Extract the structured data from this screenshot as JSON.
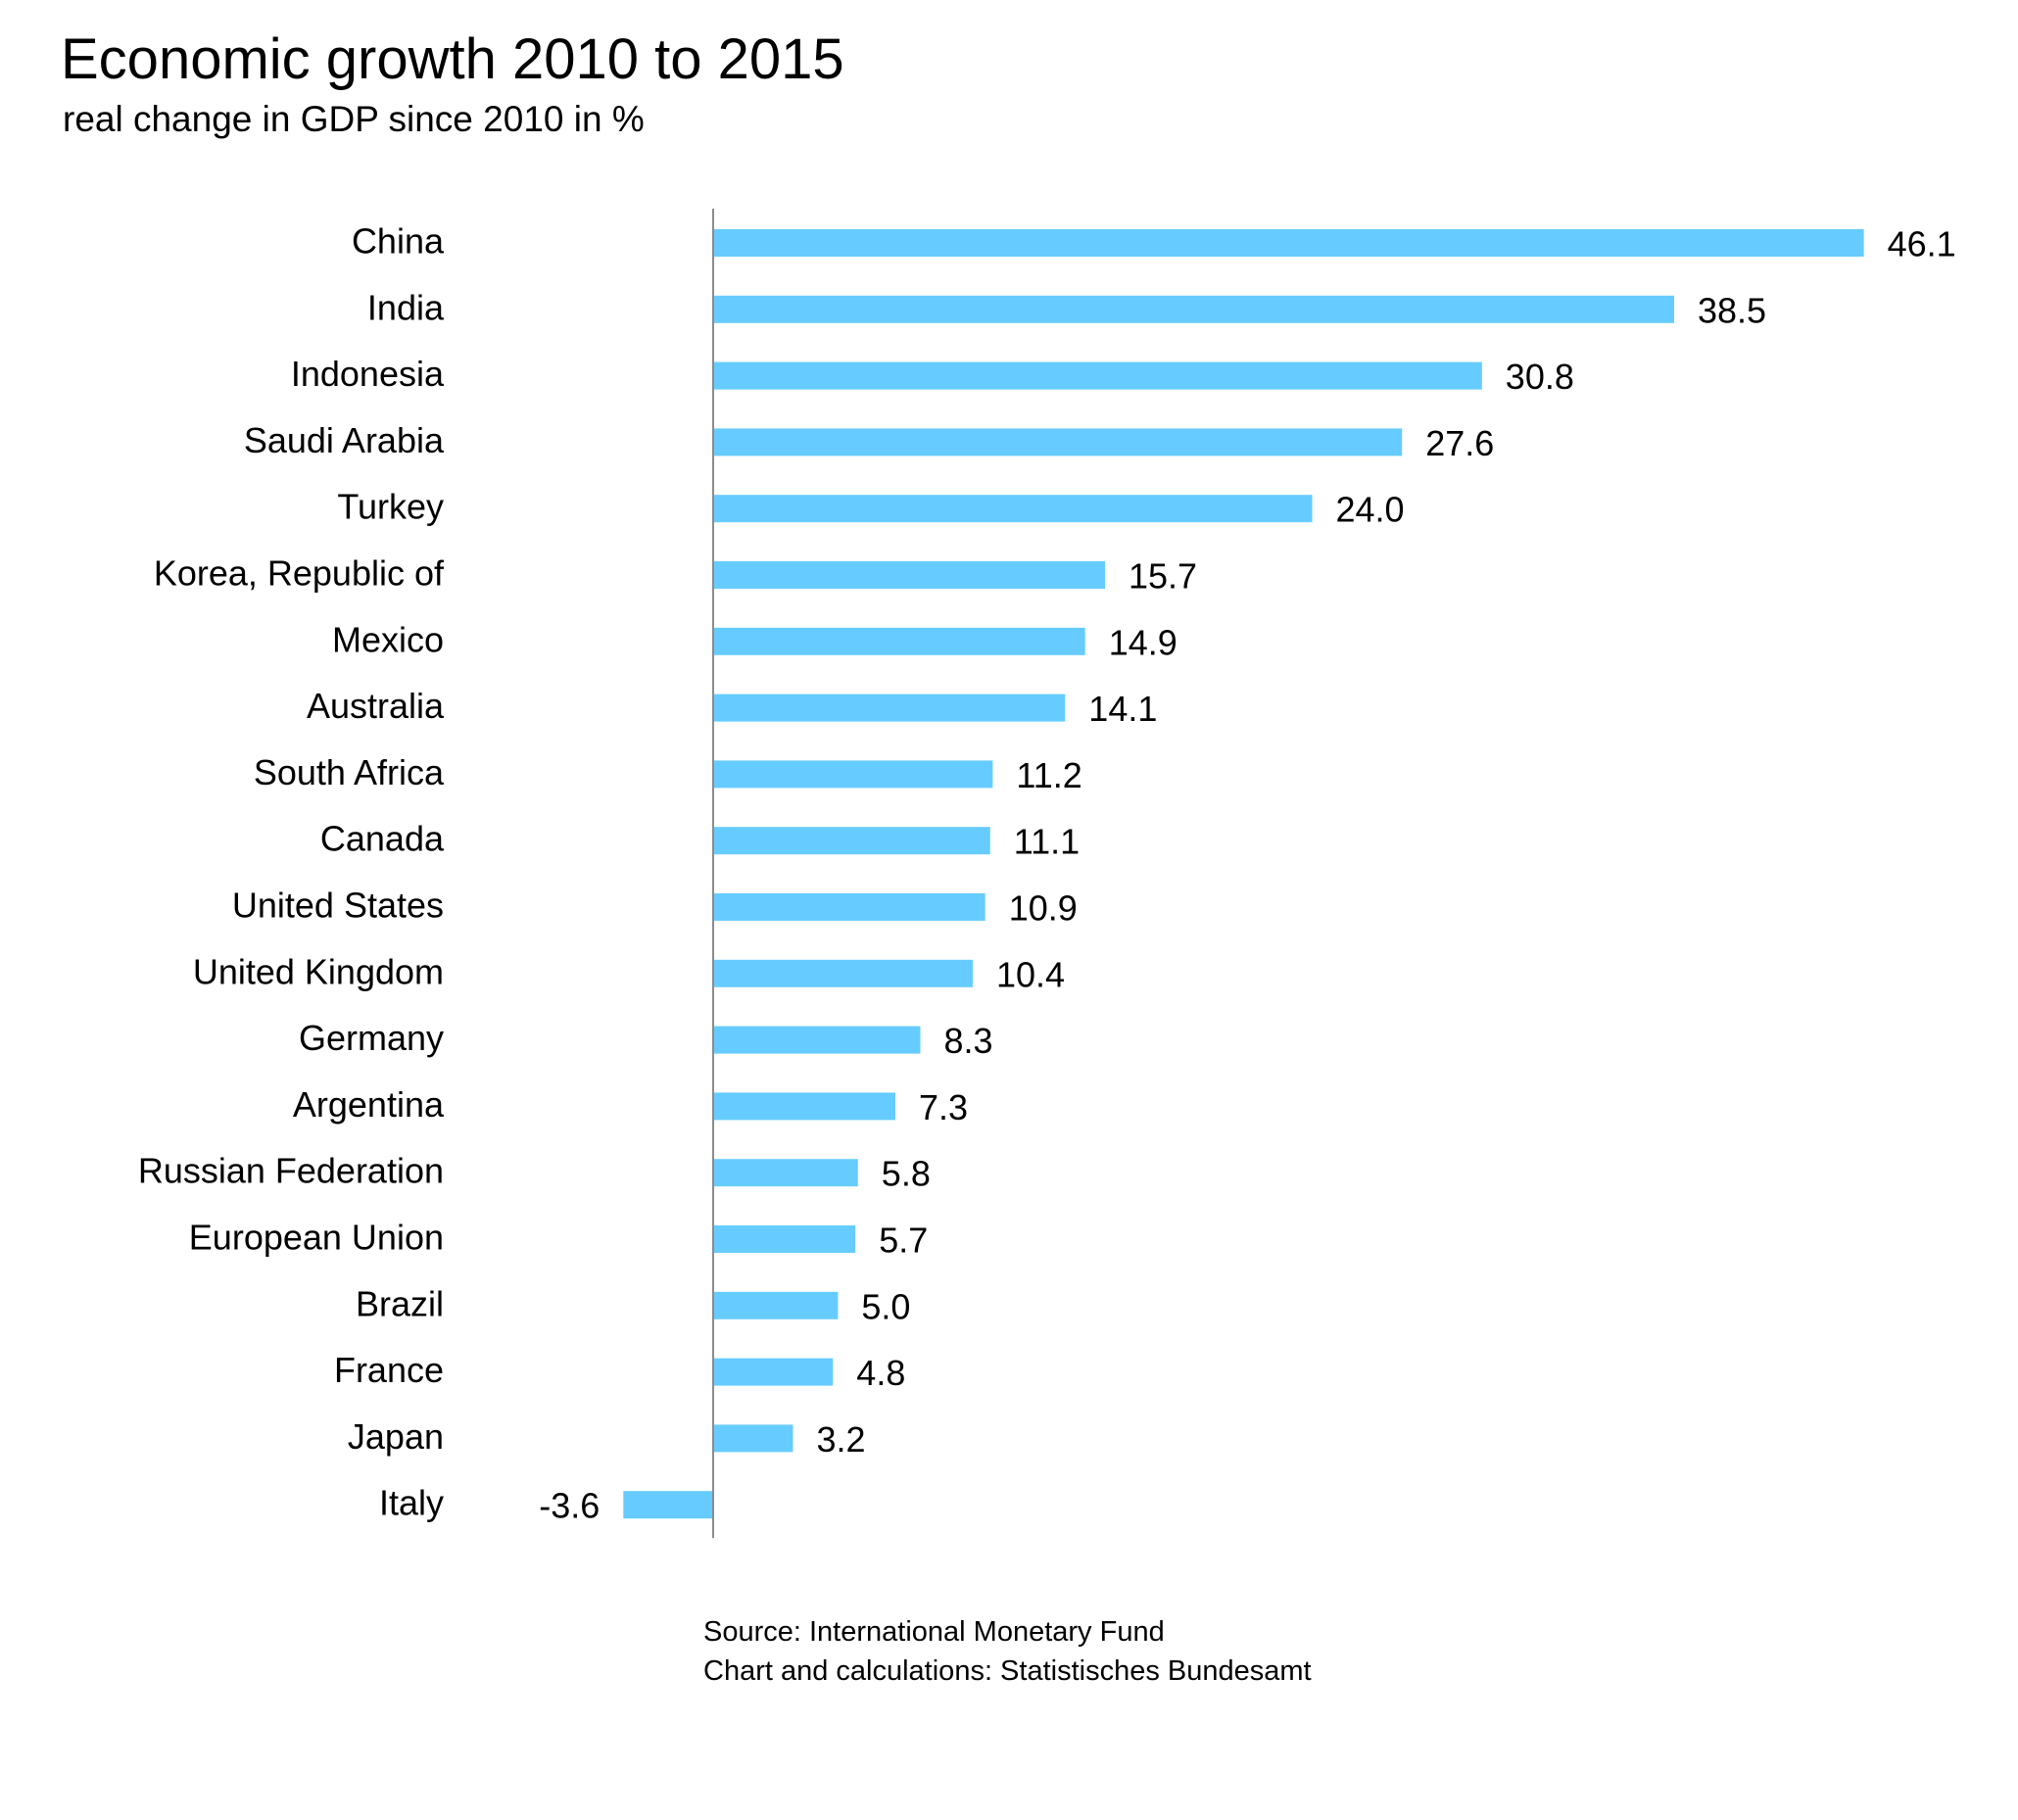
{
  "chart_data": {
    "type": "bar",
    "orientation": "horizontal",
    "title": "Economic growth 2010 to 2015",
    "subtitle": "real change in GDP since 2010 in %",
    "xlabel": "",
    "ylabel": "",
    "categories": [
      "China",
      "India",
      "Indonesia",
      "Saudi Arabia",
      "Turkey",
      "Korea, Republic of",
      "Mexico",
      "Australia",
      "South Africa",
      "Canada",
      "United States",
      "United Kingdom",
      "Germany",
      "Argentina",
      "Russian Federation",
      "European Union",
      "Brazil",
      "France",
      "Japan",
      "Italy"
    ],
    "values": [
      46.1,
      38.5,
      30.8,
      27.6,
      24.0,
      15.7,
      14.9,
      14.1,
      11.2,
      11.1,
      10.9,
      10.4,
      8.3,
      7.3,
      5.8,
      5.7,
      5.0,
      4.8,
      3.2,
      -3.6
    ],
    "value_labels": [
      "46.1",
      "38.5",
      "30.8",
      "27.6",
      "24.0",
      "15.7",
      "14.9",
      "14.1",
      "11.2",
      "11.1",
      "10.9",
      "10.4",
      "8.3",
      "7.3",
      "5.8",
      "5.7",
      "5.0",
      "4.8",
      "3.2",
      "-3.6"
    ],
    "xlim": [
      -3.6,
      46.1
    ],
    "grid": false,
    "legend": "none",
    "bar_color": "#66CCFF",
    "axis_color": "#8C8C8C",
    "source_lines": [
      "Source: International Monetary Fund",
      "Chart and calculations: Statistisches Bundesamt"
    ]
  }
}
